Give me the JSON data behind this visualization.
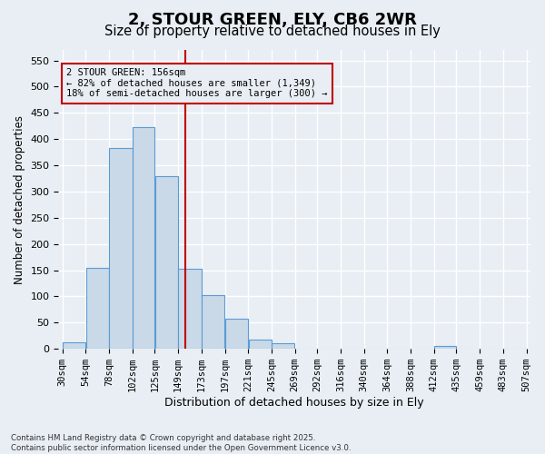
{
  "title": "2, STOUR GREEN, ELY, CB6 2WR",
  "subtitle": "Size of property relative to detached houses in Ely",
  "xlabel": "Distribution of detached houses by size in Ely",
  "ylabel": "Number of detached properties",
  "bar_edges": [
    30,
    54,
    78,
    102,
    125,
    149,
    173,
    197,
    221,
    245,
    269,
    292,
    316,
    340,
    364,
    388,
    412,
    435,
    459,
    483,
    507
  ],
  "bar_heights": [
    12,
    155,
    383,
    422,
    330,
    152,
    102,
    57,
    18,
    10,
    0,
    0,
    0,
    0,
    0,
    0,
    5,
    0,
    0,
    0
  ],
  "bar_color": "#c9d9e8",
  "bar_edge_color": "#5b9bd5",
  "vline_x": 156,
  "vline_color": "#c00000",
  "annotation_text": "2 STOUR GREEN: 156sqm\n← 82% of detached houses are smaller (1,349)\n18% of semi-detached houses are larger (300) →",
  "annotation_box_color": "#c00000",
  "ylim": [
    0,
    570
  ],
  "yticks": [
    0,
    50,
    100,
    150,
    200,
    250,
    300,
    350,
    400,
    450,
    500,
    550
  ],
  "background_color": "#e8eef4",
  "grid_color": "#ffffff",
  "footer": "Contains HM Land Registry data © Crown copyright and database right 2025.\nContains public sector information licensed under the Open Government Licence v3.0.",
  "title_fontsize": 13,
  "subtitle_fontsize": 10.5,
  "xlabel_fontsize": 9,
  "ylabel_fontsize": 8.5,
  "tick_fontsize": 7.5,
  "ann_fontsize": 7.5
}
